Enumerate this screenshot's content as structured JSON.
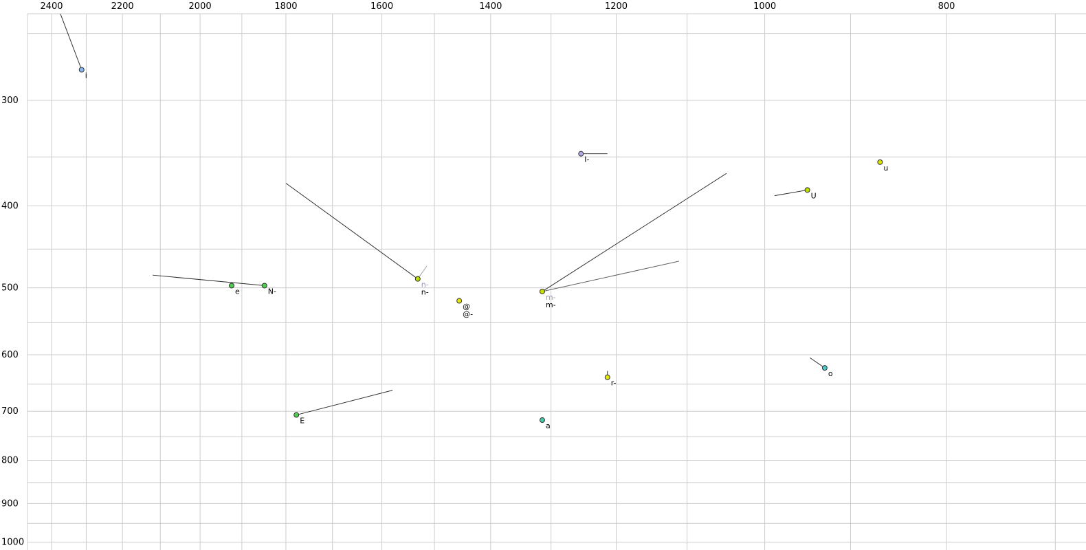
{
  "chart_data": {
    "type": "scatter",
    "title": "",
    "background": "#ffffff",
    "grid": true,
    "grid_color": "#cccccc",
    "x_axis": {
      "position": "top",
      "scale": "log",
      "reversed": true,
      "tick_values": [
        2400,
        2200,
        2000,
        1800,
        1600,
        1400,
        1200,
        1000,
        800
      ],
      "tick_labels": [
        "2400",
        "2200",
        "2000",
        "1800",
        "1600",
        "1400",
        "1200",
        "1000",
        "800"
      ],
      "range": [
        2560,
        640
      ],
      "gridline_step_hz": 100,
      "gridline_range": [
        700,
        2500
      ]
    },
    "y_axis": {
      "position": "left",
      "scale": "log",
      "reversed": false,
      "tick_values": [
        300,
        400,
        500,
        600,
        700,
        800,
        900,
        1000
      ],
      "tick_labels": [
        "300",
        "400",
        "500",
        "600",
        "700",
        "800",
        "900",
        "1000"
      ],
      "range": [
        237,
        1021
      ],
      "gridline_step_hz": 50,
      "gridline_range": [
        250,
        1000
      ]
    },
    "points": [
      {
        "label": "i",
        "f2": 2313,
        "f1": 276,
        "fill": "#8ab8ee",
        "labels": [
          {
            "text": "i",
            "color": "#000000"
          }
        ],
        "vectors": [
          {
            "f2": 2374,
            "f1": 237,
            "color": "#303030"
          }
        ]
      },
      {
        "label": "I-",
        "f2": 1253,
        "f1": 347,
        "fill": "#b0a8e8",
        "labels": [
          {
            "text": "I-",
            "color": "#000000"
          }
        ],
        "vectors": [
          {
            "f2": 1213,
            "f1": 347,
            "color": "#303030"
          }
        ]
      },
      {
        "label": "u",
        "f2": 868,
        "f1": 355,
        "fill": "#d8e000",
        "labels": [
          {
            "text": "u",
            "color": "#000000"
          }
        ],
        "vectors": []
      },
      {
        "label": "U",
        "f2": 949,
        "f1": 383,
        "fill": "#bede00",
        "labels": [
          {
            "text": "U",
            "color": "#000000"
          }
        ],
        "vectors": [
          {
            "f2": 988,
            "f1": 389,
            "color": "#303030"
          }
        ]
      },
      {
        "label": "e",
        "f2": 1924,
        "f1": 497,
        "fill": "#50d050",
        "labels": [
          {
            "text": "e",
            "color": "#000000"
          }
        ],
        "vectors": []
      },
      {
        "label": "N-",
        "f2": 1848,
        "f1": 497,
        "fill": "#50d050",
        "labels": [
          {
            "text": "N-",
            "color": "#000000"
          }
        ],
        "vectors": [
          {
            "f2": 2120,
            "f1": 483,
            "color": "#303030"
          }
        ]
      },
      {
        "label": "n-",
        "f2": 1531,
        "f1": 488,
        "fill": "#bede00",
        "labels": [
          {
            "text": "n-",
            "color": "#9a9ab4"
          },
          {
            "text": "n-",
            "color": "#000000"
          }
        ],
        "vectors": [
          {
            "f2": 1800,
            "f1": 376,
            "color": "#303030"
          },
          {
            "f2": 1514,
            "f1": 471,
            "color": "#a0a0a0"
          }
        ]
      },
      {
        "label": "@",
        "f2": 1455,
        "f1": 518,
        "fill": "#e8e800",
        "labels": [
          {
            "text": "@",
            "color": "#000000"
          },
          {
            "text": "@-",
            "color": "#000000"
          }
        ],
        "vectors": []
      },
      {
        "label": "m-",
        "f2": 1314,
        "f1": 505,
        "fill": "#cade00",
        "labels": [
          {
            "text": "m-",
            "color": "#9a9ab4"
          },
          {
            "text": "m-",
            "color": "#000000"
          }
        ],
        "vectors": [
          {
            "f2": 1048,
            "f1": 366,
            "color": "#303030"
          },
          {
            "f2": 1111,
            "f1": 465,
            "color": "#606060"
          }
        ]
      },
      {
        "label": "r-",
        "f2": 1213,
        "f1": 638,
        "fill": "#e8e800",
        "labels": [
          {
            "text": "r-",
            "color": "#000000"
          }
        ],
        "vectors": [
          {
            "f2": 1213,
            "f1": 627,
            "color": "#303030"
          }
        ]
      },
      {
        "label": "o",
        "f2": 929,
        "f1": 622,
        "fill": "#48c8c8",
        "labels": [
          {
            "text": "o",
            "color": "#000000"
          }
        ],
        "vectors": [
          {
            "f2": 946,
            "f1": 605,
            "color": "#303030"
          }
        ]
      },
      {
        "label": "E",
        "f2": 1777,
        "f1": 707,
        "fill": "#50d050",
        "labels": [
          {
            "text": "E",
            "color": "#000000"
          }
        ],
        "vectors": [
          {
            "f2": 1579,
            "f1": 661,
            "color": "#303030"
          }
        ]
      },
      {
        "label": "a",
        "f2": 1314,
        "f1": 717,
        "fill": "#48c8a8",
        "labels": [
          {
            "text": "a",
            "color": "#000000"
          }
        ],
        "vectors": []
      }
    ]
  }
}
